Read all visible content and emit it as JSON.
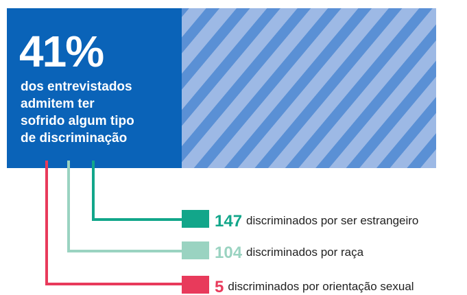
{
  "headline": "41%",
  "description": [
    "dos entrevistados",
    "admitem ter",
    "sofrido algum tipo",
    "de discriminação"
  ],
  "box_color": "#0a63b8",
  "stripe_colors": [
    "#9db9e5",
    "#5a90d5"
  ],
  "items": [
    {
      "number": 147,
      "label": "discriminados por ser estrangeiro",
      "color": "#12a68a"
    },
    {
      "number": 104,
      "label": "discriminados por raça",
      "color": "#9ad3c1"
    },
    {
      "number": 5,
      "label": "discriminados por orientação sexual",
      "color": "#e83a5b"
    }
  ]
}
